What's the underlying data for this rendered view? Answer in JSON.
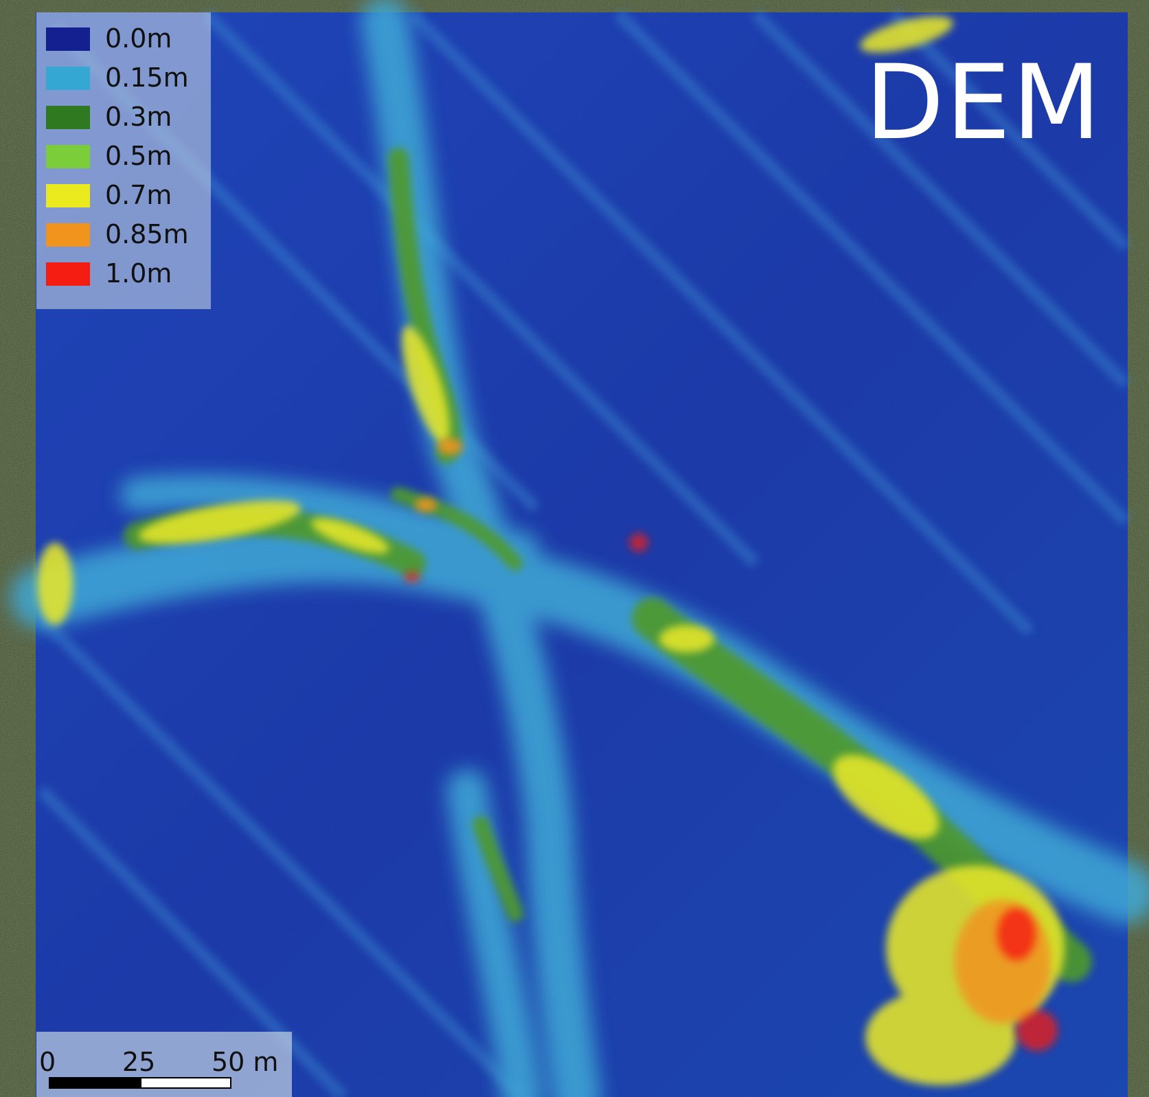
{
  "title": "DEM",
  "legend": {
    "items": [
      {
        "label": "0.0m",
        "color": "#14208f"
      },
      {
        "label": "0.15m",
        "color": "#34a8d3"
      },
      {
        "label": "0.3m",
        "color": "#2f7a20"
      },
      {
        "label": "0.5m",
        "color": "#7ccd3a"
      },
      {
        "label": "0.7m",
        "color": "#eaea1f"
      },
      {
        "label": "0.85m",
        "color": "#f0941d"
      },
      {
        "label": "1.0m",
        "color": "#f51c12"
      }
    ]
  },
  "scale_bar": {
    "ticks": [
      "0",
      "25",
      "50 m"
    ],
    "segment_colors": [
      "#000000",
      "#ffffff"
    ]
  }
}
